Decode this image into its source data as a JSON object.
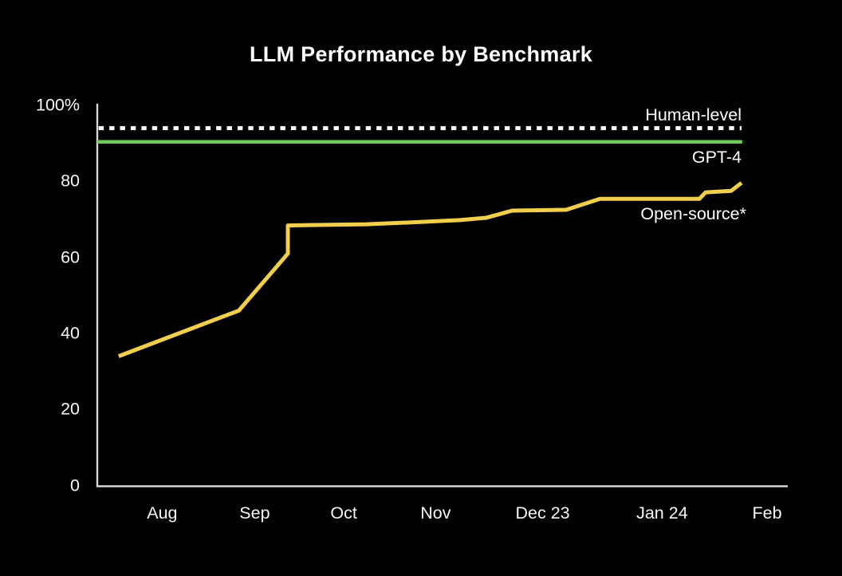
{
  "chart_data": {
    "type": "line",
    "title": "LLM Performance by Benchmark",
    "xlabel": "",
    "ylabel": "",
    "ylim": [
      0,
      100
    ],
    "grid": false,
    "legend_position": "inline-right-labels",
    "background_color": "#000000",
    "axis_color": "#d6d6d6",
    "text_color": "#ffffff",
    "y_ticks": [
      {
        "value": 100,
        "label": "100%"
      },
      {
        "value": 80,
        "label": "80"
      },
      {
        "value": 60,
        "label": "60"
      },
      {
        "value": 40,
        "label": "40"
      },
      {
        "value": 20,
        "label": "20"
      },
      {
        "value": 0,
        "label": "0"
      }
    ],
    "x_ticks": [
      {
        "pos": 0.094,
        "label": "Aug"
      },
      {
        "pos": 0.228,
        "label": "Sep"
      },
      {
        "pos": 0.357,
        "label": "Oct"
      },
      {
        "pos": 0.49,
        "label": "Nov"
      },
      {
        "pos": 0.645,
        "label": "Dec 23"
      },
      {
        "pos": 0.818,
        "label": "Jan 24"
      },
      {
        "pos": 0.97,
        "label": "Feb"
      }
    ],
    "series": [
      {
        "name": "Open-source*",
        "color": "#f1ce4b",
        "points": [
          {
            "pos": 0.031,
            "value": 34.0
          },
          {
            "pos": 0.205,
            "value": 46.0
          },
          {
            "pos": 0.276,
            "value": 61.0
          },
          {
            "pos": 0.276,
            "value": 68.4
          },
          {
            "pos": 0.39,
            "value": 68.7
          },
          {
            "pos": 0.467,
            "value": 69.3
          },
          {
            "pos": 0.525,
            "value": 69.8
          },
          {
            "pos": 0.563,
            "value": 70.4
          },
          {
            "pos": 0.601,
            "value": 72.3
          },
          {
            "pos": 0.679,
            "value": 72.5
          },
          {
            "pos": 0.728,
            "value": 75.4
          },
          {
            "pos": 0.872,
            "value": 75.4
          },
          {
            "pos": 0.881,
            "value": 77.1
          },
          {
            "pos": 0.918,
            "value": 77.5
          },
          {
            "pos": 0.933,
            "value": 79.6
          }
        ]
      }
    ],
    "reference_lines": [
      {
        "name": "Human-level",
        "value": 94.0,
        "style": "dotted",
        "color": "#ffffff",
        "pos_start": 0.002,
        "pos_end": 0.933
      },
      {
        "name": "GPT-4",
        "value": 90.4,
        "style": "solid",
        "color": "#70c857",
        "pos_start": 0.0,
        "pos_end": 0.934
      }
    ]
  }
}
